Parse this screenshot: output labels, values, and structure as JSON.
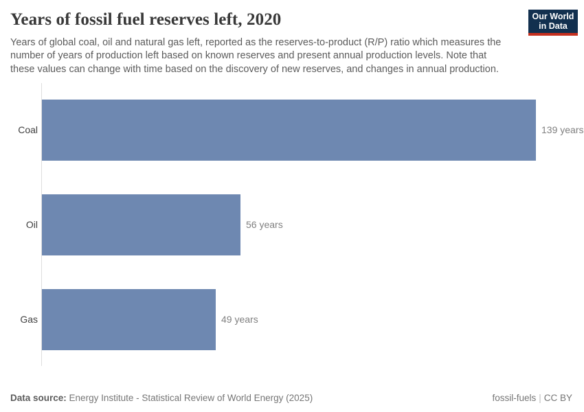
{
  "header": {
    "title": "Years of fossil fuel reserves left, 2020",
    "subtitle": "Years of global coal, oil and natural gas left, reported as the reserves-to-product (R/P) ratio which measures the number of years of production left based on known reserves and present annual production levels. Note that these values can change with time based on the discovery of new reserves, and changes in annual production.",
    "logo": {
      "line1": "Our World",
      "line2": "in Data"
    }
  },
  "chart_data": {
    "type": "bar",
    "orientation": "horizontal",
    "title": "Years of fossil fuel reserves left, 2020",
    "categories": [
      "Coal",
      "Oil",
      "Gas"
    ],
    "values": [
      139,
      56,
      49
    ],
    "value_labels": [
      "139 years",
      "56 years",
      "49 years"
    ],
    "unit": "years",
    "xlabel": "",
    "ylabel": "",
    "xlim": [
      0,
      139
    ],
    "grid": false,
    "legend": "none",
    "bar_color": "#6e88b1",
    "axis_color": "#dedede"
  },
  "footer": {
    "datasource_label": "Data source:",
    "datasource_value": "Energy Institute - Statistical Review of World Energy (2025)",
    "link_label": "fossil-fuels",
    "separator": "|",
    "license_label": "CC BY"
  },
  "colors": {
    "bar": "#6e88b1",
    "axis_line": "#dedede",
    "logo_background": "#12304f",
    "logo_underline": "#c5301f",
    "title_text": "#383838",
    "subtitle_text": "#5b5b5b"
  }
}
